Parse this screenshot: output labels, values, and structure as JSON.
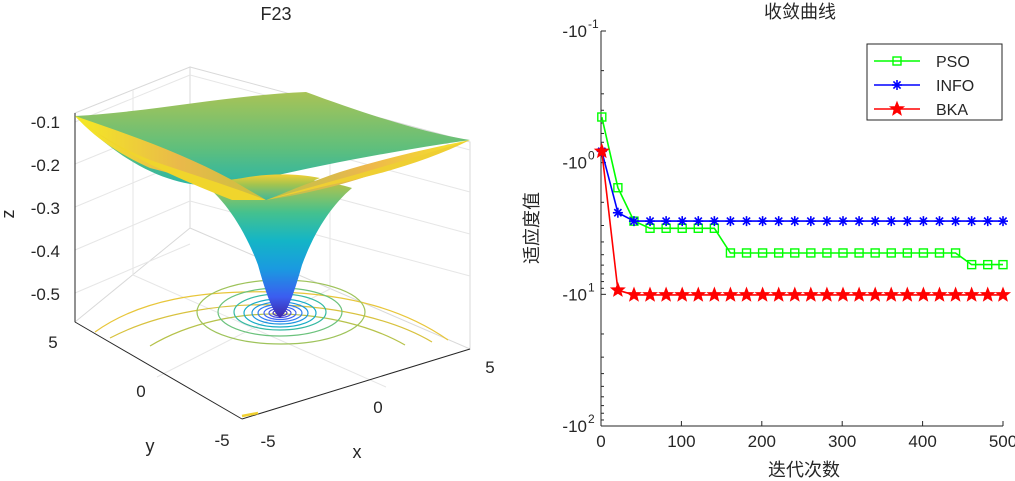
{
  "chart_data": [
    {
      "type": "surface",
      "title": "F23",
      "xlabel": "x",
      "ylabel": "y",
      "zlabel": "z",
      "x_ticks": [
        "-5",
        "0",
        "5"
      ],
      "y_ticks": [
        "-5",
        "0",
        "5"
      ],
      "z_ticks": [
        "-0.1",
        "-0.2",
        "-0.3",
        "-0.4",
        "-0.5"
      ],
      "xlim": [
        -5,
        5
      ],
      "ylim": [
        -5,
        5
      ],
      "zlim": [
        -0.55,
        -0.05
      ],
      "colormap": "parula",
      "surface_min": -0.54,
      "surface_edge": -0.1,
      "contour_levels": 14
    },
    {
      "type": "line",
      "title": "收敛曲线",
      "xlabel": "迭代次数",
      "ylabel": "适应度值",
      "yscale": "log (negative)",
      "xlim": [
        0,
        500
      ],
      "ylim_exp": [
        -1,
        2
      ],
      "x_ticks": [
        "0",
        "100",
        "200",
        "300",
        "400",
        "500"
      ],
      "y_ticks": [
        {
          "base": "-10",
          "exp": "-1"
        },
        {
          "base": "-10",
          "exp": "0"
        },
        {
          "base": "-10",
          "exp": "1"
        },
        {
          "base": "-10",
          "exp": "2"
        }
      ],
      "legend_position": "top-right",
      "x": [
        1,
        21,
        41,
        61,
        81,
        101,
        121,
        141,
        161,
        181,
        201,
        221,
        241,
        261,
        281,
        301,
        321,
        341,
        361,
        381,
        401,
        421,
        441,
        461,
        481,
        500
      ],
      "series": [
        {
          "name": "PSO",
          "color": "#00ff00",
          "marker": "square",
          "values": [
            0.45,
            1.55,
            2.78,
            3.15,
            3.15,
            3.15,
            3.15,
            3.15,
            4.85,
            4.85,
            4.85,
            4.85,
            4.85,
            4.85,
            4.85,
            4.85,
            4.85,
            4.85,
            4.85,
            4.85,
            4.85,
            4.85,
            4.85,
            5.95,
            5.95,
            5.95
          ]
        },
        {
          "name": "INFO",
          "color": "#0000ff",
          "marker": "asterisk",
          "values": [
            0.82,
            2.4,
            2.78,
            2.78,
            2.78,
            2.78,
            2.78,
            2.78,
            2.78,
            2.78,
            2.78,
            2.78,
            2.78,
            2.78,
            2.78,
            2.78,
            2.78,
            2.78,
            2.78,
            2.78,
            2.78,
            2.78,
            2.78,
            2.78,
            2.78,
            2.78
          ]
        },
        {
          "name": "BKA",
          "color": "#ff0000",
          "marker": "pentagram",
          "values": [
            0.82,
            9.3,
            10.1,
            10.1,
            10.1,
            10.1,
            10.1,
            10.1,
            10.1,
            10.1,
            10.1,
            10.1,
            10.1,
            10.1,
            10.1,
            10.1,
            10.1,
            10.1,
            10.1,
            10.1,
            10.1,
            10.1,
            10.1,
            10.1,
            10.1,
            10.1
          ]
        }
      ]
    }
  ]
}
